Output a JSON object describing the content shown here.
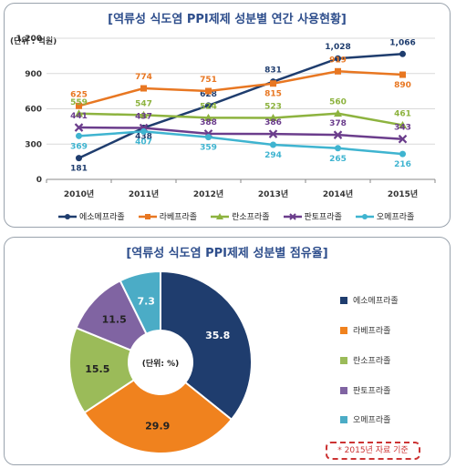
{
  "line_panel": {
    "title": "[역류성 식도염 PPI제제 성분별 연간 사용현황]",
    "unit_label": "(단위 : 억원)"
  },
  "pie_panel": {
    "title": "[역류성 식도염 PPI제제 성분별 점유율]",
    "center_label": "(단위: %)",
    "note": "* 2015년 자료 기준"
  },
  "chart_data": [
    {
      "type": "line",
      "title": "[역류성 식도염 PPI제제 성분별 연간 사용현황]",
      "ylabel": "(단위 : 억원)",
      "x": [
        "2010년",
        "2011년",
        "2012년",
        "2013년",
        "2014년",
        "2015년"
      ],
      "ylim": [
        0,
        1200
      ],
      "yticks": [
        "0",
        "300",
        "600",
        "900",
        "1,200"
      ],
      "grid": true,
      "legend_position": "bottom",
      "series": [
        {
          "name": "에소메프라졸",
          "color": "#1f3d6e",
          "marker": "circle",
          "values": [
            181,
            438,
            628,
            831,
            1028,
            1066
          ],
          "labels": [
            "181",
            "438",
            "628",
            "831",
            "1,028",
            "1,066"
          ]
        },
        {
          "name": "라베프라졸",
          "color": "#e87722",
          "marker": "square",
          "values": [
            625,
            774,
            751,
            815,
            919,
            890
          ],
          "labels": [
            "625",
            "774",
            "751",
            "815",
            "919",
            "890"
          ]
        },
        {
          "name": "란소프라졸",
          "color": "#8db33f",
          "marker": "triangle",
          "values": [
            559,
            547,
            524,
            523,
            560,
            461
          ],
          "labels": [
            "559",
            "547",
            "524",
            "523",
            "560",
            "461"
          ]
        },
        {
          "name": "판토프라졸",
          "color": "#6b3d8c",
          "marker": "cross",
          "values": [
            441,
            437,
            388,
            386,
            378,
            343
          ],
          "labels": [
            "441",
            "437",
            "388",
            "386",
            "378",
            "343"
          ]
        },
        {
          "name": "오메프라졸",
          "color": "#3fb4d0",
          "marker": "circle",
          "values": [
            369,
            407,
            359,
            294,
            265,
            216
          ],
          "labels": [
            "369",
            "407",
            "359",
            "294",
            "265",
            "216"
          ]
        }
      ]
    },
    {
      "type": "pie",
      "title": "[역류성 식도염 PPI제제 성분별 점유율]",
      "center_text": "(단위: %)",
      "legend_position": "right",
      "slices": [
        {
          "name": "에소메프라졸",
          "value": 35.8,
          "color": "#1f3d6e"
        },
        {
          "name": "라베프라졸",
          "value": 29.9,
          "color": "#f0821e"
        },
        {
          "name": "란소프라졸",
          "value": 15.5,
          "color": "#9bbb59"
        },
        {
          "name": "판토프라졸",
          "value": 11.5,
          "color": "#8064a2"
        },
        {
          "name": "오메프라졸",
          "value": 7.3,
          "color": "#4bacc6"
        }
      ]
    }
  ]
}
